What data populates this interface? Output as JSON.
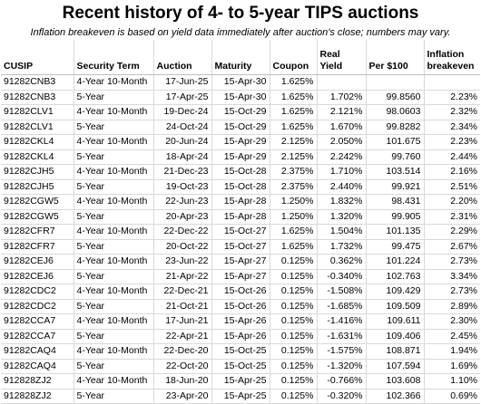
{
  "header": {
    "title": "Recent history of 4- to 5-year TIPS auctions",
    "subtitle": "Inflation breakeven is based on yield data immediately after auction's close; numbers may vary."
  },
  "table": {
    "columns": [
      "CUSIP",
      "Security Term",
      "Auction",
      "Maturity",
      "Coupon",
      "Real Yield",
      "Per $100",
      "Inflation breakeven"
    ],
    "rows": [
      [
        "91282CNB3",
        "4-Year 10-Month",
        "17-Jun-25",
        "15-Apr-30",
        "1.625%",
        "",
        "",
        ""
      ],
      [
        "91282CNB3",
        "5-Year",
        "17-Apr-25",
        "15-Apr-30",
        "1.625%",
        "1.702%",
        "99.8560",
        "2.23%"
      ],
      [
        "91282CLV1",
        "4-Year 10-Month",
        "19-Dec-24",
        "15-Oct-29",
        "1.625%",
        "2.121%",
        "98.0603",
        "2.32%"
      ],
      [
        "91282CLV1",
        "5-Year",
        "24-Oct-24",
        "15-Oct-29",
        "1.625%",
        "1.670%",
        "99.8282",
        "2.34%"
      ],
      [
        "91282CKL4",
        "4-Year 10-Month",
        "20-Jun-24",
        "15-Apr-29",
        "2.125%",
        "2.050%",
        "101.675",
        "2.23%"
      ],
      [
        "91282CKL4",
        "5-Year",
        "18-Apr-24",
        "15-Apr-29",
        "2.125%",
        "2.242%",
        "99.760",
        "2.44%"
      ],
      [
        "91282CJH5",
        "4-Year 10-Month",
        "21-Dec-23",
        "15-Oct-28",
        "2.375%",
        "1.710%",
        "103.514",
        "2.16%"
      ],
      [
        "91282CJH5",
        "5-Year",
        "19-Oct-23",
        "15-Oct-28",
        "2.375%",
        "2.440%",
        "99.921",
        "2.51%"
      ],
      [
        "91282CGW5",
        "4-Year 10-Month",
        "22-Jun-23",
        "15-Apr-28",
        "1.250%",
        "1.832%",
        "98.431",
        "2.20%"
      ],
      [
        "91282CGW5",
        "5-Year",
        "20-Apr-23",
        "15-Apr-28",
        "1.250%",
        "1.320%",
        "99.905",
        "2.31%"
      ],
      [
        "91282CFR7",
        "4-Year 10-Month",
        "22-Dec-22",
        "15-Oct-27",
        "1.625%",
        "1.504%",
        "101.135",
        "2.29%"
      ],
      [
        "91282CFR7",
        "5-Year",
        "20-Oct-22",
        "15-Oct-27",
        "1.625%",
        "1.732%",
        "99.475",
        "2.67%"
      ],
      [
        "91282CEJ6",
        "4-Year 10-Month",
        "23-Jun-22",
        "15-Apr-27",
        "0.125%",
        "0.362%",
        "101.224",
        "2.73%"
      ],
      [
        "91282CEJ6",
        "5-Year",
        "21-Apr-22",
        "15-Apr-27",
        "0.125%",
        "-0.340%",
        "102.763",
        "3.34%"
      ],
      [
        "91282CDC2",
        "4-Year 10-Month",
        "22-Dec-21",
        "15-Oct-26",
        "0.125%",
        "-1.508%",
        "109.429",
        "2.73%"
      ],
      [
        "91282CDC2",
        "5-Year",
        "21-Oct-21",
        "15-Oct-26",
        "0.125%",
        "-1.685%",
        "109.509",
        "2.89%"
      ],
      [
        "91282CCA7",
        "4-Year 10-Month",
        "17-Jun-21",
        "15-Apr-26",
        "0.125%",
        "-1.416%",
        "109.611",
        "2.30%"
      ],
      [
        "91282CCA7",
        "5-Year",
        "22-Apr-21",
        "15-Apr-26",
        "0.125%",
        "-1.631%",
        "109.406",
        "2.45%"
      ],
      [
        "91282CAQ4",
        "4-Year 10-Month",
        "22-Dec-20",
        "15-Oct-25",
        "0.125%",
        "-1.575%",
        "108.871",
        "1.94%"
      ],
      [
        "91282CAQ4",
        "5-Year",
        "22-Oct-20",
        "15-Oct-25",
        "0.125%",
        "-1.320%",
        "107.594",
        "1.69%"
      ],
      [
        "912828ZJ2",
        "4-Year 10-Month",
        "18-Jun-20",
        "15-Apr-25",
        "0.125%",
        "-0.766%",
        "103.608",
        "1.10%"
      ],
      [
        "912828ZJ2",
        "5-Year",
        "23-Apr-20",
        "15-Apr-25",
        "0.125%",
        "-0.320%",
        "102.366",
        "0.69%"
      ]
    ]
  }
}
